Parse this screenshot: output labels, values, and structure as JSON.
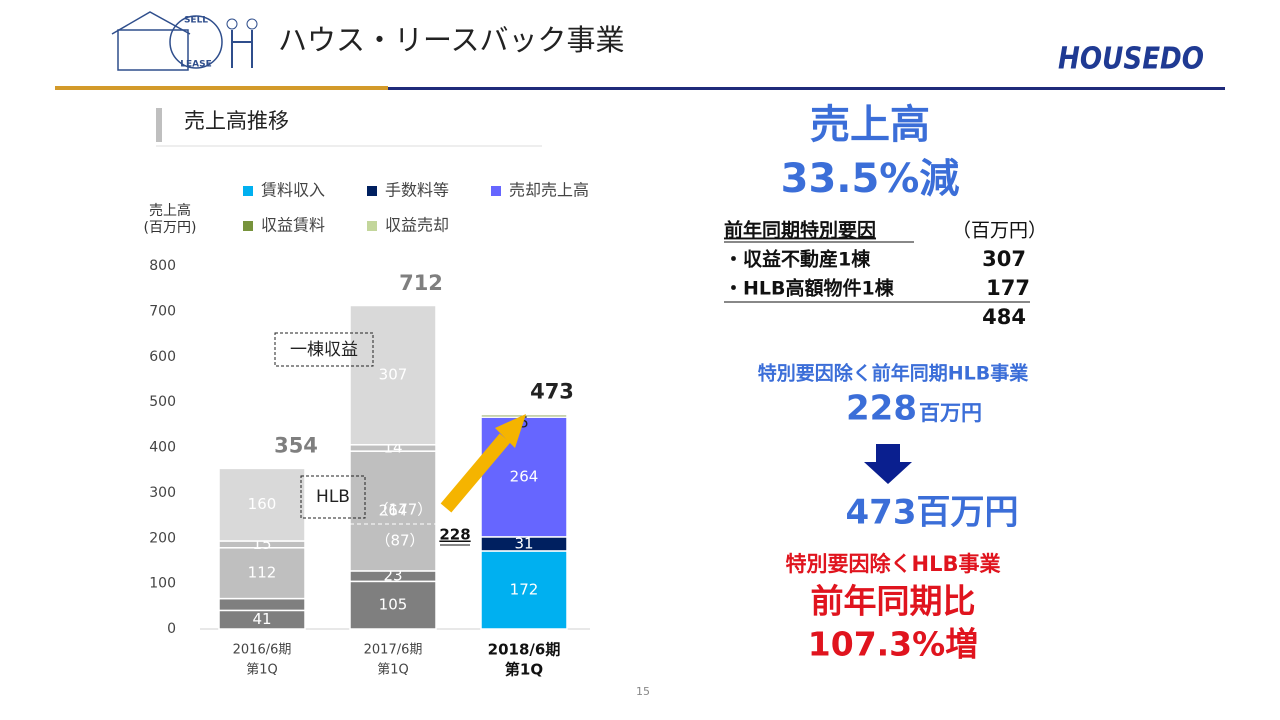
{
  "header": {
    "title": "ハウス・リースバック事業",
    "logo": "HOUSEDO",
    "icon_top": "SELL",
    "icon_bottom": "LEASE"
  },
  "section": "売上高推移",
  "page_number": "15",
  "summary": {
    "headline": "売上高",
    "change": "33.5%減",
    "special_title": "前年同期特別要因",
    "unit": "（百万円）",
    "rows": [
      [
        "・収益不動産1棟",
        "307"
      ],
      [
        "・HLB高額物件1棟",
        "177"
      ]
    ],
    "total": "484",
    "excl_title": "特別要因除く前年同期HLB事業",
    "excl_value": "228",
    "excl_unit": "百万円",
    "current": "473百万円",
    "hlb_title": "特別要因除くHLB事業",
    "hlb_compare": "前年同期比",
    "hlb_change": "107.3%増"
  },
  "chart_data": {
    "type": "stacked_bar",
    "y_label": [
      "売上高",
      "(百万円)"
    ],
    "categories": [
      [
        "2016/6期",
        "第1Q"
      ],
      [
        "2017/6期",
        "第1Q"
      ],
      [
        "2018/6期",
        "第1Q"
      ]
    ],
    "ylim": [
      0,
      800
    ],
    "yticks": [
      0,
      100,
      200,
      300,
      400,
      500,
      600,
      700,
      800
    ],
    "legend": "top",
    "series": [
      {
        "name": "賃料収入",
        "color": "#00b0f0",
        "colors": [
          "#7f7f7f",
          "#7f7f7f",
          "#00b0f0"
        ],
        "values": [
          41,
          105,
          172
        ],
        "value_labels": [
          "41",
          "105",
          "172"
        ]
      },
      {
        "name": "手数料等",
        "color": "#002060",
        "colors": [
          "#7f7f7f",
          "#7f7f7f",
          "#002060"
        ],
        "values": [
          26,
          23,
          31
        ],
        "value_labels": [
          null,
          "23",
          "31"
        ]
      },
      {
        "name": "売却売上高",
        "color": "#6666ff",
        "colors": [
          "#bfbfbf",
          "#bfbfbf",
          "#6666ff"
        ],
        "values": [
          112,
          264,
          264
        ],
        "value_labels": [
          "112",
          "264",
          "264"
        ]
      },
      {
        "name": "収益賃料",
        "color": "#77933c",
        "colors": [
          "#bfbfbf",
          "#bfbfbf",
          "#77933c"
        ],
        "values": [
          15,
          14,
          5
        ],
        "value_labels": [
          "15",
          "14",
          "5"
        ]
      },
      {
        "name": "収益売却",
        "color": "#c3d69b",
        "colors": [
          "#d9d9d9",
          "#d9d9d9",
          "#c3d69b"
        ],
        "values": [
          160,
          307,
          0
        ],
        "value_labels": [
          "160",
          "307",
          null
        ]
      }
    ],
    "totals": [
      354,
      712,
      473
    ],
    "annotations": [
      "一棟収益",
      "HLB",
      "（177）",
      "（87）",
      "228"
    ]
  }
}
